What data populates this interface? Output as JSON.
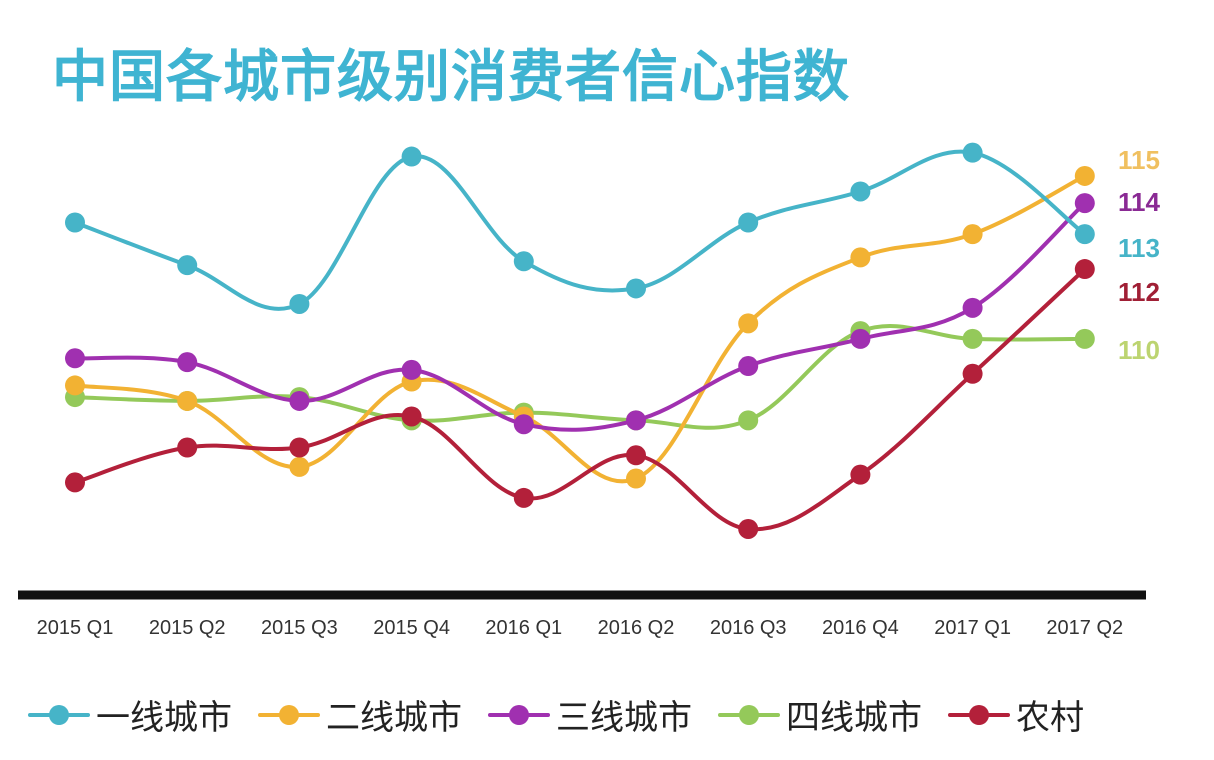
{
  "chart_data": {
    "type": "line",
    "title": "中国各城市级别消费者信心指数",
    "categories": [
      "2015 Q1",
      "2015 Q2",
      "2015 Q3",
      "2015 Q4",
      "2016 Q1",
      "2016 Q2",
      "2016 Q3",
      "2016 Q4",
      "2017 Q1",
      "2017 Q2"
    ],
    "series": [
      {
        "name": "一线城市",
        "color": "#46b4c8",
        "values": [
          113.5,
          112.4,
          111.4,
          115.2,
          112.5,
          111.8,
          113.5,
          114.3,
          115.3,
          113.2
        ],
        "end_label": "113"
      },
      {
        "name": "二线城市",
        "color": "#f2b233",
        "values": [
          109.3,
          108.9,
          107.2,
          109.4,
          108.5,
          106.9,
          110.9,
          112.6,
          113.2,
          114.7
        ],
        "end_label": "115"
      },
      {
        "name": "三线城市",
        "color": "#a030b0",
        "values": [
          110.0,
          109.9,
          108.9,
          109.7,
          108.3,
          108.4,
          109.8,
          110.5,
          111.3,
          114.0
        ],
        "end_label": "114"
      },
      {
        "name": "四线城市",
        "color": "#94c95a",
        "values": [
          109.0,
          108.9,
          109.0,
          108.4,
          108.6,
          108.4,
          108.4,
          110.7,
          110.5,
          110.5
        ],
        "end_label": "110"
      },
      {
        "name": "农村",
        "color": "#b3203a",
        "values": [
          106.8,
          107.7,
          107.7,
          108.5,
          106.4,
          107.5,
          105.6,
          107.0,
          109.6,
          112.3
        ],
        "end_label": "112"
      }
    ],
    "ylim": [
      104.8,
      116.4
    ],
    "grid": false,
    "legend": "bottom"
  }
}
